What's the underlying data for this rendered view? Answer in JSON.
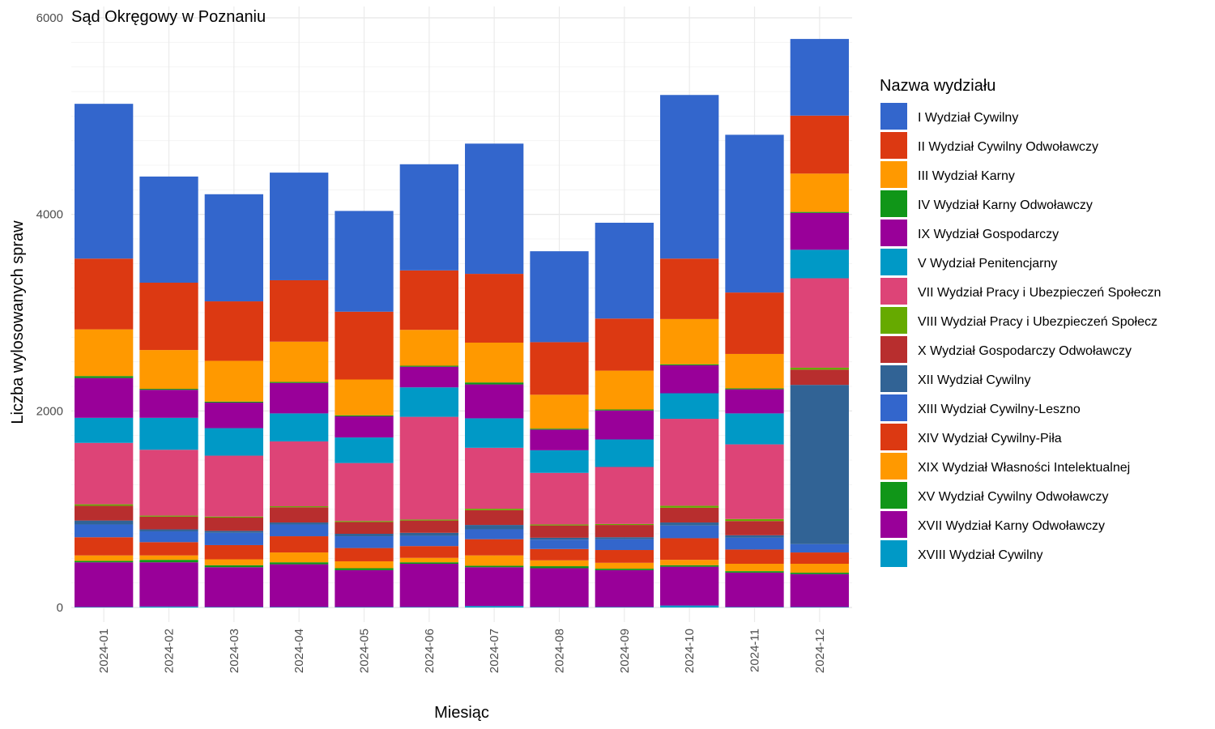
{
  "chart_data": {
    "type": "bar",
    "stacked": true,
    "title": "Sąd Okręgowy w Poznaniu",
    "xlabel": "Miesiąc",
    "ylabel": "Liczba wylosowanych spraw",
    "ylim": [
      0,
      6000
    ],
    "yticks": [
      "0",
      "2000",
      "4000",
      "6000"
    ],
    "grid": true,
    "legend_title": "Nazwa wydziału",
    "legend_position": "right",
    "categories": [
      "2024-01",
      "2024-02",
      "2024-03",
      "2024-04",
      "2024-05",
      "2024-06",
      "2024-07",
      "2024-08",
      "2024-09",
      "2024-10",
      "2024-11",
      "2024-12"
    ],
    "series": [
      {
        "name": "XVIII Wydział Cywilny",
        "color": "#0099C6",
        "values": [
          5,
          10,
          5,
          5,
          5,
          5,
          15,
          5,
          5,
          20,
          5,
          5
        ]
      },
      {
        "name": "XVII Wydział Karny Odwoławczy",
        "color": "#990099",
        "values": [
          455,
          450,
          405,
          435,
          375,
          440,
          395,
          395,
          375,
          395,
          350,
          335
        ]
      },
      {
        "name": "XV Wydział Cywilny Odwoławczy",
        "color": "#109618",
        "values": [
          15,
          25,
          20,
          20,
          20,
          15,
          15,
          20,
          15,
          15,
          15,
          15
        ]
      },
      {
        "name": "XIX Wydział Własności Intelektualnej",
        "color": "#FF9900",
        "values": [
          55,
          45,
          60,
          100,
          70,
          45,
          105,
          60,
          60,
          55,
          75,
          90
        ]
      },
      {
        "name": "XIV Wydział Cywilny-Piła",
        "color": "#DC3912",
        "values": [
          185,
          135,
          145,
          165,
          135,
          120,
          165,
          115,
          130,
          220,
          145,
          115
        ]
      },
      {
        "name": "XIII Wydział Cywilny-Leszno",
        "color": "#3366CC",
        "values": [
          130,
          110,
          125,
          120,
          120,
          105,
          100,
          95,
          110,
          130,
          120,
          85
        ]
      },
      {
        "name": "XII Wydział Cywilny",
        "color": "#316395",
        "values": [
          40,
          20,
          20,
          20,
          25,
          30,
          45,
          20,
          20,
          30,
          25,
          1620
        ]
      },
      {
        "name": "X Wydział Gospodarczy Odwoławczy",
        "color": "#B82E2E",
        "values": [
          150,
          130,
          135,
          155,
          120,
          125,
          150,
          125,
          125,
          150,
          145,
          155
        ]
      },
      {
        "name": "VIII Wydział Pracy i Ubezpieczeń Społecz",
        "color": "#66AA00",
        "values": [
          15,
          10,
          10,
          10,
          10,
          10,
          15,
          10,
          10,
          20,
          20,
          20
        ]
      },
      {
        "name": "VII Wydział Pracy i Ubezpieczeń Społeczn",
        "color": "#DD4477",
        "values": [
          625,
          670,
          620,
          660,
          590,
          1045,
          620,
          525,
          580,
          885,
          760,
          910
        ]
      },
      {
        "name": "V Wydział Penitencjarny",
        "color": "#0099C6",
        "values": [
          255,
          325,
          280,
          285,
          260,
          300,
          300,
          230,
          280,
          260,
          315,
          290
        ]
      },
      {
        "name": "IX Wydział Gospodarczy",
        "color": "#990099",
        "values": [
          405,
          285,
          260,
          310,
          215,
          210,
          345,
          210,
          295,
          285,
          245,
          375
        ]
      },
      {
        "name": "IV Wydział Karny Odwoławczy",
        "color": "#109618",
        "values": [
          20,
          10,
          10,
          10,
          10,
          10,
          20,
          10,
          10,
          10,
          10,
          10
        ]
      },
      {
        "name": "III Wydział Karny",
        "color": "#FF9900",
        "values": [
          475,
          395,
          415,
          410,
          365,
          365,
          405,
          345,
          395,
          460,
          350,
          390
        ]
      },
      {
        "name": "II Wydział Cywilny Odwoławczy",
        "color": "#DC3912",
        "values": [
          720,
          685,
          605,
          625,
          690,
          605,
          700,
          535,
          530,
          615,
          625,
          590
        ]
      },
      {
        "name": "I Wydział Cywilny",
        "color": "#3366CC",
        "values": [
          1575,
          1080,
          1090,
          1095,
          1025,
          1080,
          1325,
          925,
          975,
          1665,
          1605,
          780
        ]
      }
    ],
    "legend_order": [
      "I Wydział Cywilny",
      "II Wydział Cywilny Odwoławczy",
      "III Wydział Karny",
      "IV Wydział Karny Odwoławczy",
      "IX Wydział Gospodarczy",
      "V Wydział Penitencjarny",
      "VII Wydział Pracy i Ubezpieczeń Społeczn",
      "VIII Wydział Pracy i Ubezpieczeń Społecz",
      "X Wydział Gospodarczy Odwoławczy",
      "XII Wydział Cywilny",
      "XIII Wydział Cywilny-Leszno",
      "XIV Wydział Cywilny-Piła",
      "XIX Wydział Własności Intelektualnej",
      "XV Wydział Cywilny Odwoławczy",
      "XVII Wydział Karny Odwoławczy",
      "XVIII Wydział Cywilny"
    ]
  }
}
